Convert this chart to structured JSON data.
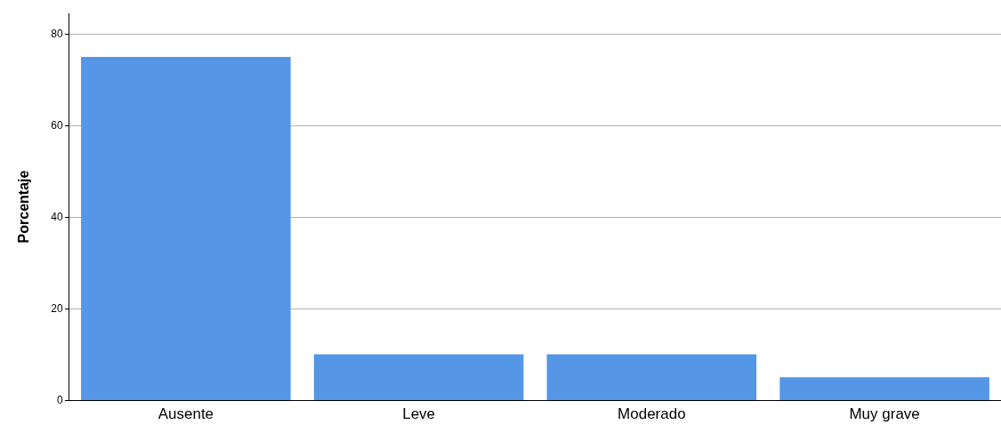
{
  "chart_data": {
    "type": "bar",
    "ylabel": "Porcentaje",
    "categories": [
      "Ausente",
      "Leve",
      "Moderado",
      "Muy grave"
    ],
    "values": [
      75,
      10,
      10,
      5
    ],
    "color": "#5596e6",
    "ylim": [
      0,
      84.5
    ],
    "yticks": [
      0,
      20,
      40,
      60,
      80
    ],
    "grid": "y"
  }
}
